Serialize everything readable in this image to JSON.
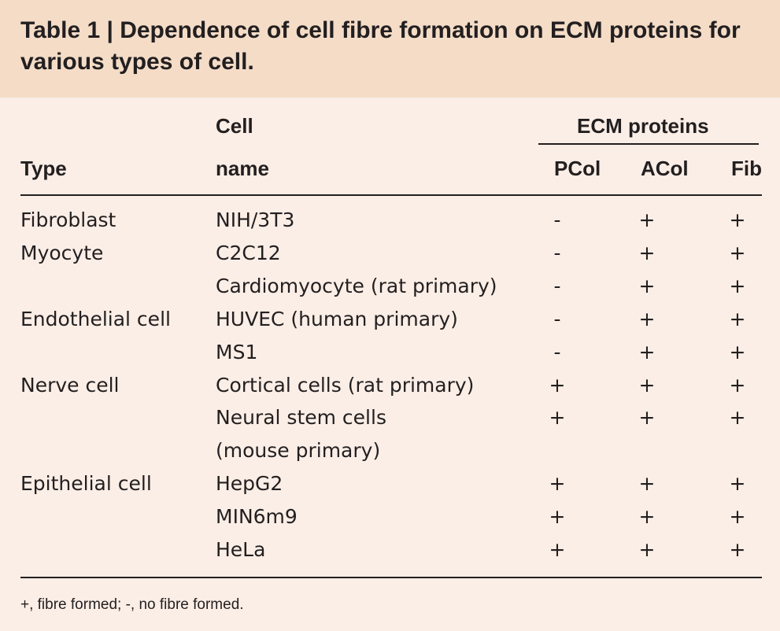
{
  "title": "Table 1 | Dependence of cell fibre formation on ECM proteins for various types of cell.",
  "headers": {
    "type": "Type",
    "cell_line1": "Cell",
    "cell_line2": "name",
    "ecm": "ECM proteins",
    "pcol": "PCol",
    "acol": "ACol",
    "fib": "Fib"
  },
  "rows": [
    {
      "type": "Fibroblast",
      "name": "NIH/3T3",
      "pcol": "-",
      "acol": "+",
      "fib": "+"
    },
    {
      "type": "Myocyte",
      "name": "C2C12",
      "pcol": "-",
      "acol": "+",
      "fib": "+"
    },
    {
      "type": "",
      "name": "Cardiomyocyte (rat primary)",
      "pcol": "-",
      "acol": "+",
      "fib": "+"
    },
    {
      "type": "Endothelial cell",
      "name": "HUVEC (human primary)",
      "pcol": "-",
      "acol": "+",
      "fib": "+"
    },
    {
      "type": "",
      "name": "MS1",
      "pcol": "-",
      "acol": "+",
      "fib": "+"
    },
    {
      "type": "Nerve cell",
      "name": "Cortical cells (rat primary)",
      "pcol": "+",
      "acol": "+",
      "fib": "+"
    },
    {
      "type": "",
      "name": "Neural stem cells",
      "pcol": "+",
      "acol": "+",
      "fib": "+"
    },
    {
      "type": "",
      "name": "(mouse primary)",
      "pcol": "",
      "acol": "",
      "fib": ""
    },
    {
      "type": "Epithelial cell",
      "name": "HepG2",
      "pcol": "+",
      "acol": "+",
      "fib": "+"
    },
    {
      "type": "",
      "name": "MIN6m9",
      "pcol": "+",
      "acol": "+",
      "fib": "+"
    },
    {
      "type": "",
      "name": "HeLa",
      "pcol": "+",
      "acol": "+",
      "fib": "+"
    }
  ],
  "footnote": "+, fibre formed; -, no fibre formed."
}
